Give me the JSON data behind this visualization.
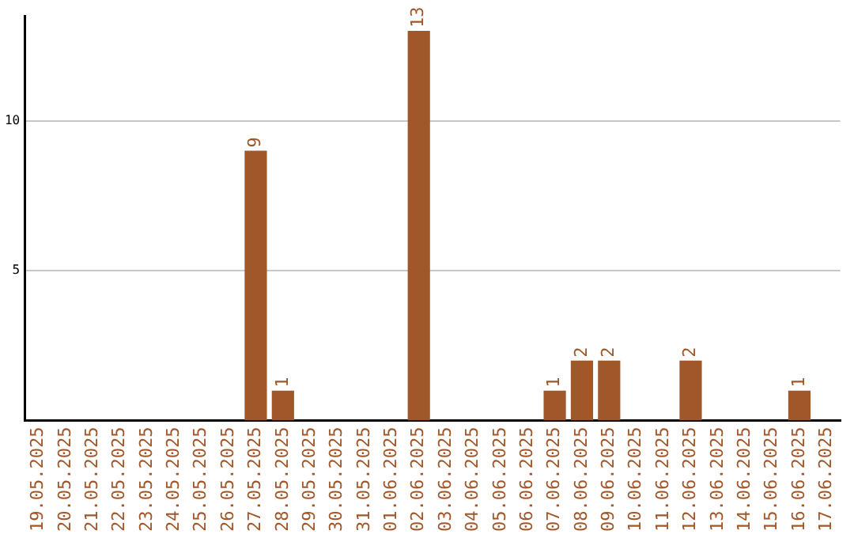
{
  "chart_data": {
    "type": "bar",
    "categories": [
      "19.05.2025",
      "20.05.2025",
      "21.05.2025",
      "22.05.2025",
      "23.05.2025",
      "24.05.2025",
      "25.05.2025",
      "26.05.2025",
      "27.05.2025",
      "28.05.2025",
      "29.05.2025",
      "30.05.2025",
      "31.05.2025",
      "01.06.2025",
      "02.06.2025",
      "03.06.2025",
      "04.06.2025",
      "05.06.2025",
      "06.06.2025",
      "07.06.2025",
      "08.06.2025",
      "09.06.2025",
      "10.06.2025",
      "11.06.2025",
      "12.06.2025",
      "13.06.2025",
      "14.06.2025",
      "15.06.2025",
      "16.06.2025",
      "17.06.2025"
    ],
    "values": [
      0,
      0,
      0,
      0,
      0,
      0,
      0,
      0,
      9,
      1,
      0,
      0,
      0,
      0,
      13,
      0,
      0,
      0,
      0,
      1,
      2,
      2,
      0,
      0,
      2,
      0,
      0,
      0,
      1,
      0
    ],
    "value_labels": [
      null,
      null,
      null,
      null,
      null,
      null,
      null,
      null,
      "9",
      "1",
      null,
      null,
      null,
      null,
      "13",
      null,
      null,
      null,
      null,
      "1",
      "2",
      "2",
      null,
      null,
      "2",
      null,
      null,
      null,
      "1",
      null
    ],
    "color": "#a0572a",
    "ylim": [
      0,
      13.5
    ],
    "yticks": [
      5,
      10
    ],
    "grid": "y",
    "legend": false
  }
}
